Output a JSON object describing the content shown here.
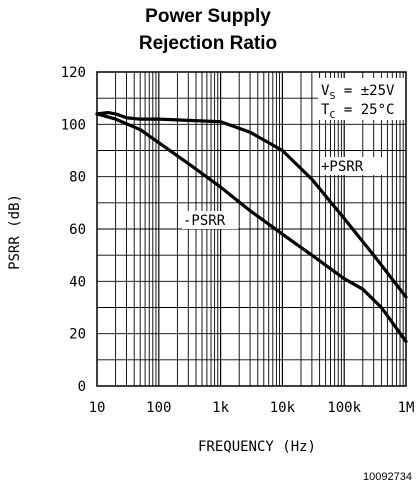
{
  "chart_data": {
    "type": "line",
    "title_line1": "Power Supply",
    "title_line2": "Rejection Ratio",
    "xlabel": "FREQUENCY (Hz)",
    "ylabel": "PSRR (dB)",
    "x_scale": "log",
    "xlim": [
      10,
      1000000
    ],
    "ylim": [
      0,
      120
    ],
    "x_tick_values": [
      10,
      100,
      1000,
      10000,
      100000,
      1000000
    ],
    "x_tick_labels": [
      "10",
      "100",
      "1k",
      "10k",
      "100k",
      "1M"
    ],
    "y_tick_values": [
      0,
      20,
      40,
      60,
      80,
      100,
      120
    ],
    "y_tick_labels": [
      "0",
      "20",
      "40",
      "60",
      "80",
      "100",
      "120"
    ],
    "grid": true,
    "series": [
      {
        "name": "+PSRR",
        "x": [
          10,
          15,
          20,
          30,
          50,
          100,
          300,
          1000,
          3000,
          10000,
          30000,
          100000,
          300000,
          1000000
        ],
        "y": [
          104,
          104.5,
          104,
          102.5,
          102,
          102,
          101.5,
          101,
          97,
          90,
          79,
          64,
          50,
          34
        ]
      },
      {
        "name": "-PSRR",
        "x": [
          10,
          20,
          50,
          100,
          300,
          1000,
          3000,
          10000,
          30000,
          100000,
          200000,
          400000,
          1000000
        ],
        "y": [
          104,
          102,
          98,
          93,
          85,
          76,
          67,
          58,
          50,
          41,
          37,
          30,
          17
        ]
      }
    ],
    "annotations": {
      "conditions": [
        {
          "main": "V",
          "sub": "S",
          "rest": " = ±25V"
        },
        {
          "main": "T",
          "sub": "C",
          "rest": " = 25°C"
        }
      ],
      "plus_label": "+PSRR",
      "minus_label": "-PSRR"
    },
    "figure_code": "10092734"
  }
}
